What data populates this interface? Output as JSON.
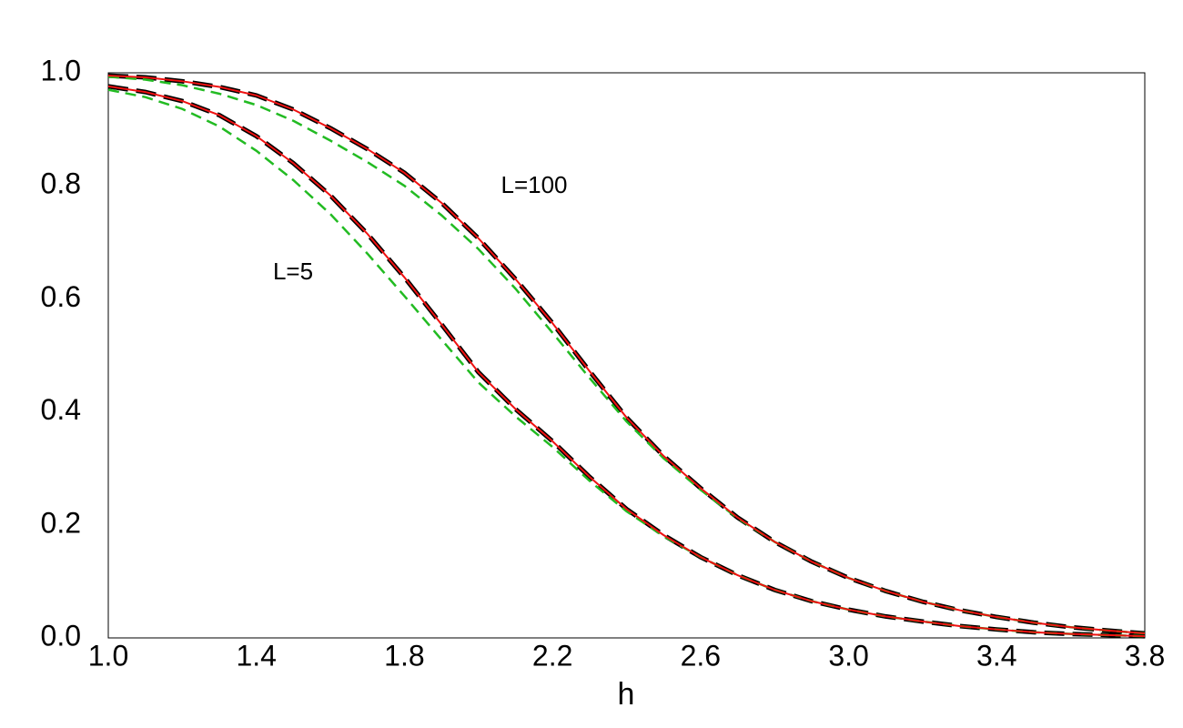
{
  "chart_data": {
    "type": "line",
    "xlabel": "h",
    "annotations": [
      "L=100",
      "L=5"
    ],
    "x": [
      1.0,
      1.1,
      1.2,
      1.3,
      1.4,
      1.5,
      1.6,
      1.7,
      1.8,
      1.9,
      2.0,
      2.1,
      2.2,
      2.3,
      2.4,
      2.5,
      2.6,
      2.7,
      2.8,
      2.9,
      3.0,
      3.1,
      3.2,
      3.3,
      3.4,
      3.5,
      3.6,
      3.7,
      3.8
    ],
    "xlim": [
      1.0,
      3.8
    ],
    "ylim": [
      0,
      1.0
    ],
    "xticks": [
      {
        "value": 1.0,
        "label": "1.0"
      },
      1.4,
      1.8,
      2.2,
      2.6,
      {
        "value": 3.0,
        "label": "3.0"
      },
      3.4,
      3.8
    ],
    "yticks": [
      {
        "value": 0,
        "label": "0.0"
      },
      0.2,
      0.4,
      0.6,
      0.8,
      {
        "value": 1.0,
        "label": "1.0"
      }
    ],
    "grid": false,
    "series": [
      {
        "color": "#000000",
        "style": "dashed",
        "values": [
          0.995,
          0.992,
          0.985,
          0.975,
          0.96,
          0.935,
          0.902,
          0.865,
          0.823,
          0.77,
          0.707,
          0.635,
          0.557,
          0.472,
          0.39,
          0.322,
          0.265,
          0.213,
          0.17,
          0.135,
          0.106,
          0.083,
          0.064,
          0.049,
          0.037,
          0.027,
          0.019,
          0.013,
          0.008
        ]
      },
      {
        "color": "#000000",
        "style": "dashed",
        "values": [
          0.976,
          0.966,
          0.95,
          0.925,
          0.888,
          0.84,
          0.783,
          0.715,
          0.638,
          0.555,
          0.47,
          0.405,
          0.348,
          0.285,
          0.228,
          0.182,
          0.143,
          0.111,
          0.085,
          0.065,
          0.05,
          0.038,
          0.029,
          0.021,
          0.015,
          0.01,
          0.007,
          0.005,
          0.003
        ]
      },
      {
        "color": "#22bb22",
        "style": "dashed-thin",
        "values": [
          0.993,
          0.988,
          0.978,
          0.963,
          0.943,
          0.915,
          0.88,
          0.842,
          0.8,
          0.748,
          0.688,
          0.618,
          0.54,
          0.46,
          0.383,
          0.318,
          0.262,
          0.212,
          0.17,
          0.135,
          0.106,
          0.083,
          0.064,
          0.049,
          0.037,
          0.027,
          0.019,
          0.013,
          0.008
        ]
      },
      {
        "color": "#22bb22",
        "style": "dashed-thin",
        "values": [
          0.97,
          0.957,
          0.936,
          0.905,
          0.862,
          0.81,
          0.75,
          0.68,
          0.605,
          0.528,
          0.452,
          0.392,
          0.338,
          0.278,
          0.224,
          0.18,
          0.143,
          0.111,
          0.085,
          0.065,
          0.05,
          0.038,
          0.029,
          0.021,
          0.015,
          0.01,
          0.007,
          0.005,
          0.003
        ]
      },
      {
        "color": "#ee1111",
        "style": "solid",
        "values": [
          0.995,
          0.992,
          0.985,
          0.975,
          0.96,
          0.935,
          0.902,
          0.865,
          0.823,
          0.77,
          0.707,
          0.635,
          0.557,
          0.472,
          0.39,
          0.322,
          0.265,
          0.213,
          0.17,
          0.135,
          0.106,
          0.083,
          0.064,
          0.049,
          0.037,
          0.027,
          0.019,
          0.013,
          0.008
        ]
      },
      {
        "color": "#ee1111",
        "style": "solid",
        "values": [
          0.976,
          0.966,
          0.95,
          0.925,
          0.888,
          0.84,
          0.783,
          0.715,
          0.638,
          0.555,
          0.47,
          0.405,
          0.348,
          0.285,
          0.228,
          0.182,
          0.143,
          0.111,
          0.085,
          0.065,
          0.05,
          0.038,
          0.029,
          0.021,
          0.015,
          0.01,
          0.007,
          0.005,
          0.003
        ]
      }
    ]
  }
}
